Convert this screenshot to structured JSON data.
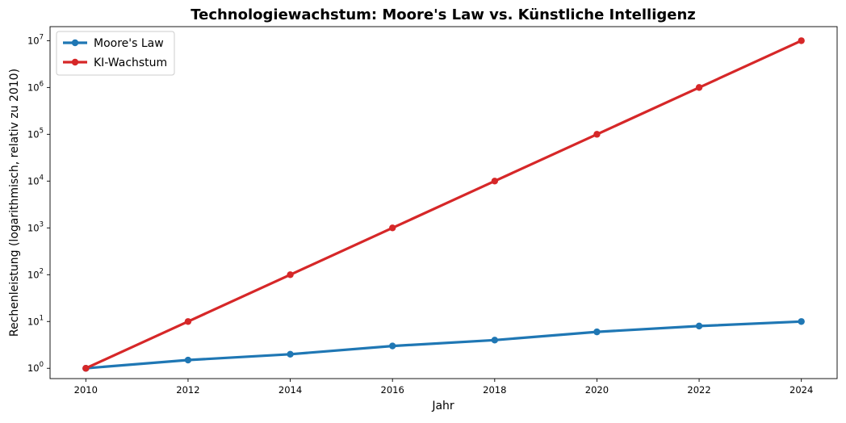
{
  "chart_data": {
    "type": "line",
    "title": "Technologiewachstum: Moore's Law vs. Künstliche Intelligenz",
    "xlabel": "Jahr",
    "ylabel": "Rechenleistung (logarithmisch, relativ zu 2010)",
    "x": [
      2010,
      2012,
      2014,
      2016,
      2018,
      2020,
      2022,
      2024
    ],
    "x_ticks": [
      "2010",
      "2012",
      "2014",
      "2016",
      "2018",
      "2020",
      "2022",
      "2024"
    ],
    "y_scale": "log",
    "y_ticks": [
      {
        "base": "10",
        "exp": "0"
      },
      {
        "base": "10",
        "exp": "1"
      },
      {
        "base": "10",
        "exp": "2"
      },
      {
        "base": "10",
        "exp": "3"
      },
      {
        "base": "10",
        "exp": "4"
      },
      {
        "base": "10",
        "exp": "5"
      },
      {
        "base": "10",
        "exp": "6"
      },
      {
        "base": "10",
        "exp": "7"
      }
    ],
    "grid": false,
    "legend_position": "top-left",
    "series": [
      {
        "name": "Moore's Law",
        "color": "#1f77b4",
        "values": [
          1,
          1.5,
          2,
          3,
          4,
          6,
          8,
          10
        ]
      },
      {
        "name": "KI-Wachstum",
        "color": "#d62728",
        "values": [
          1,
          10,
          100,
          1000,
          10000,
          100000,
          1000000,
          10000000
        ]
      }
    ]
  }
}
